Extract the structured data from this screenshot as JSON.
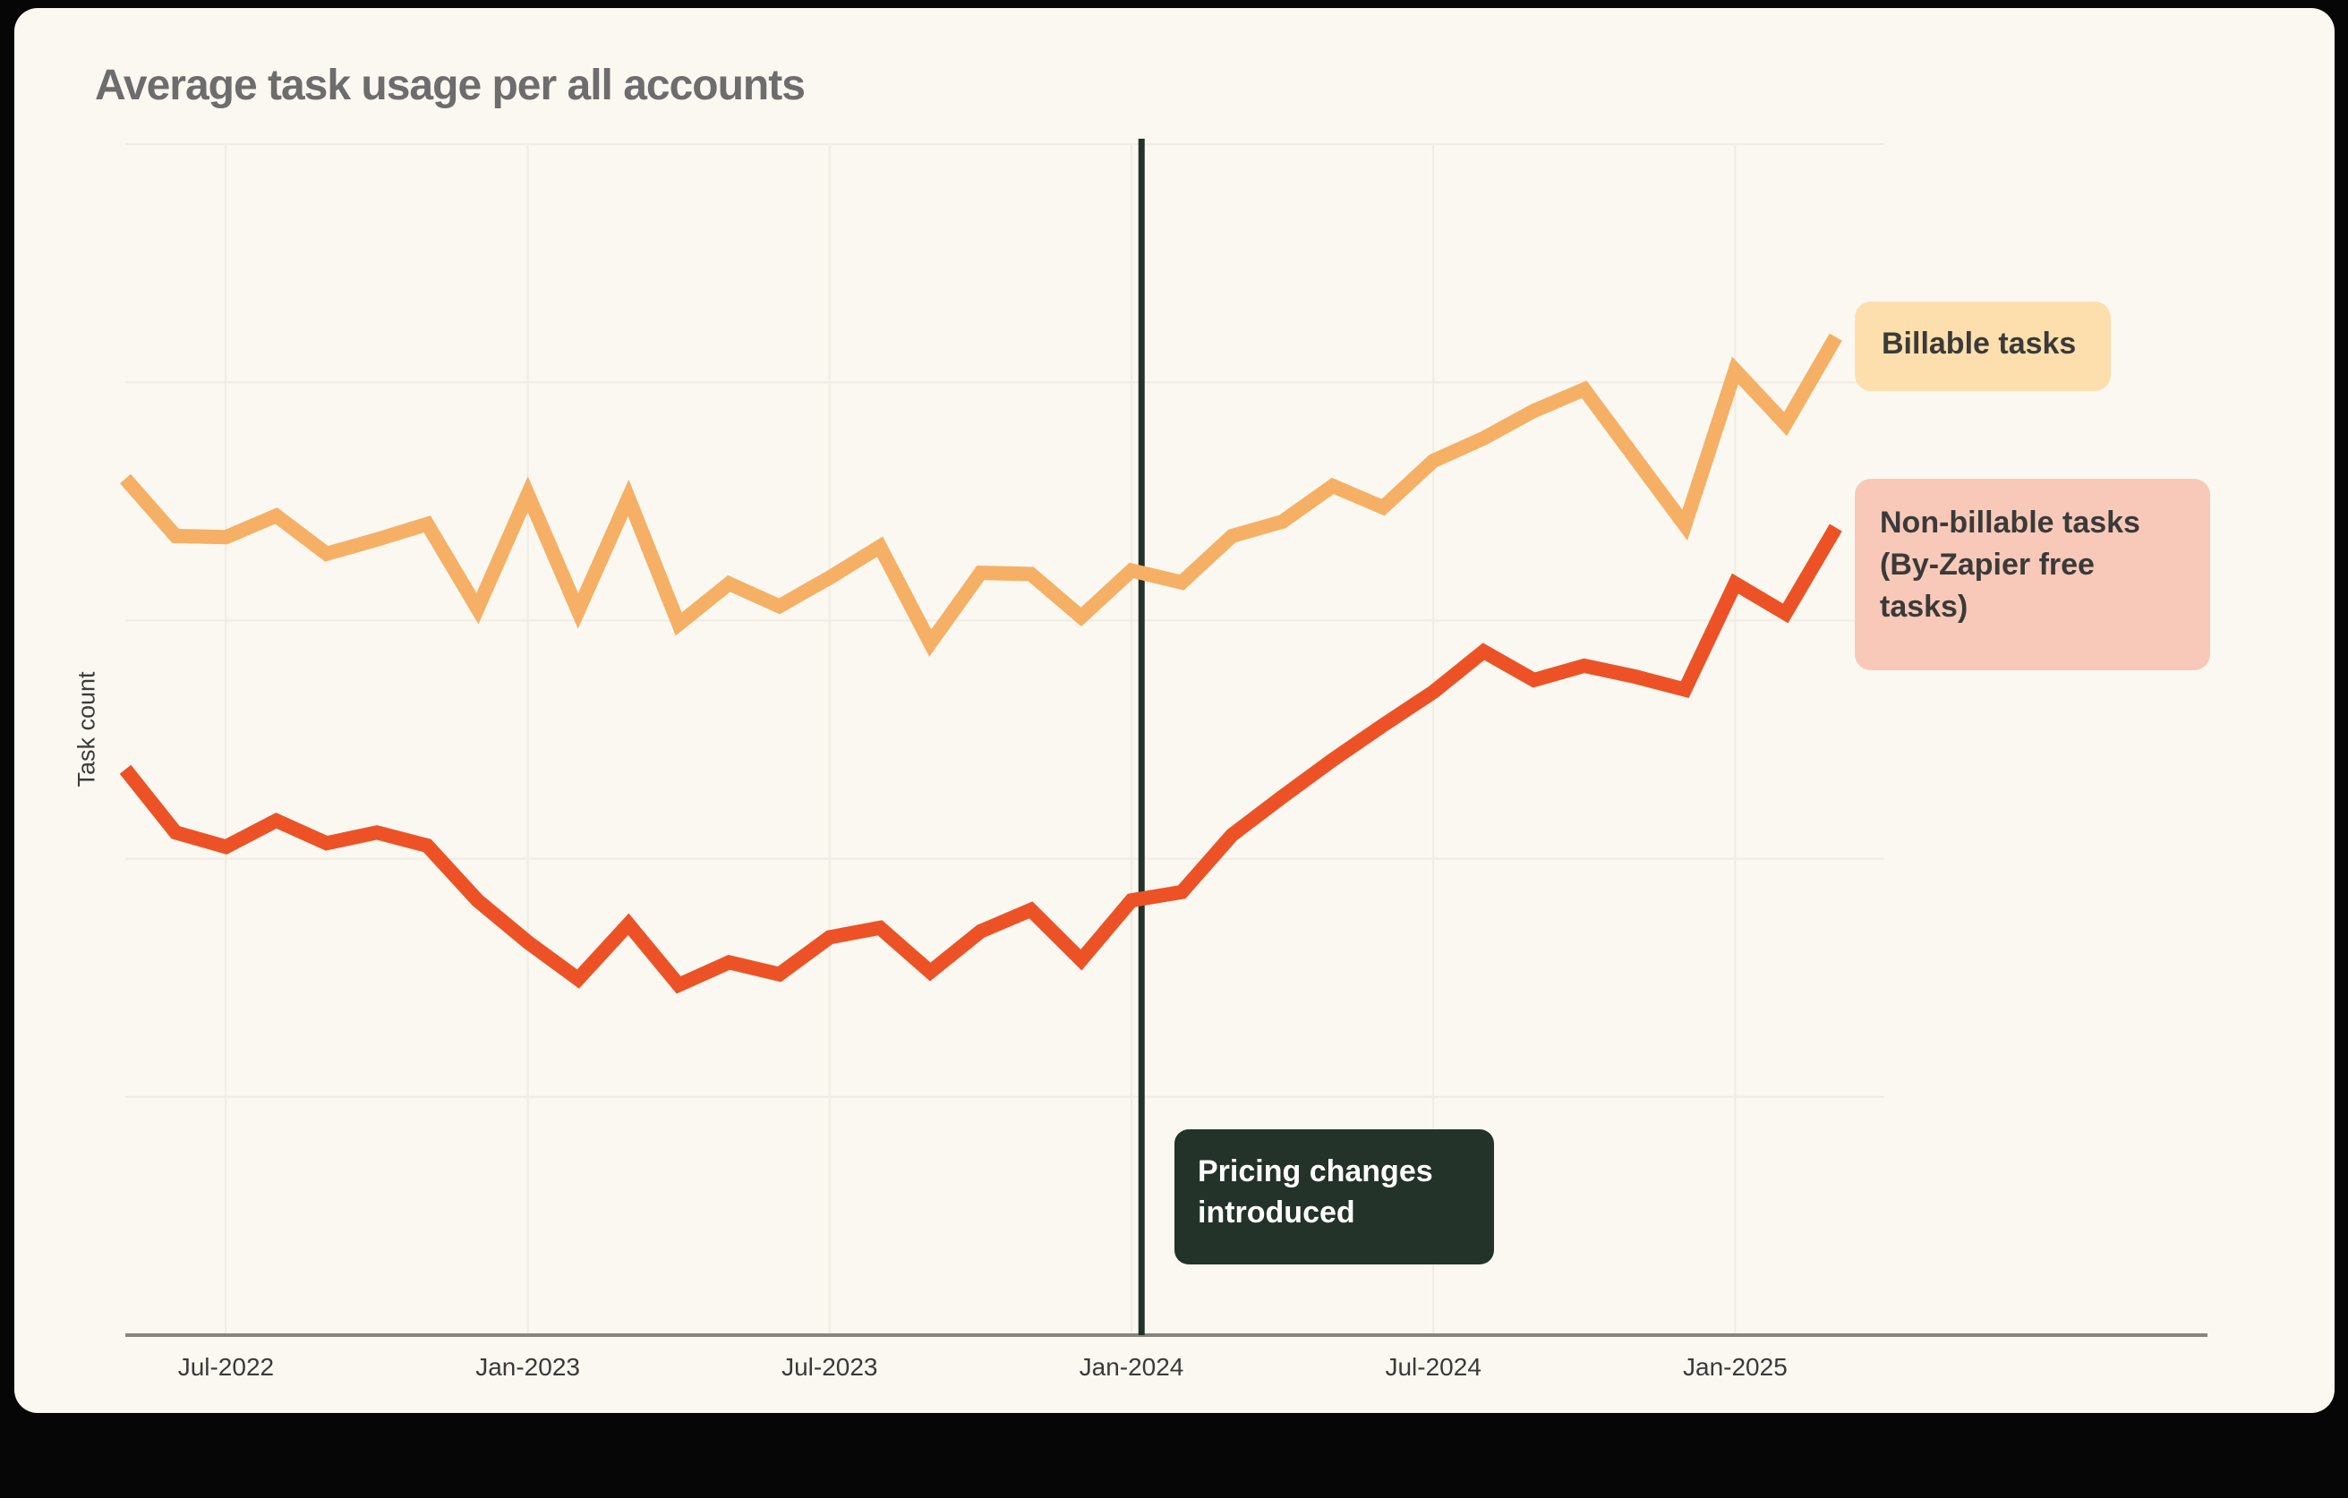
{
  "window": {
    "background": "#060606",
    "card_background": "#FBF8F1"
  },
  "header": {
    "title": "Average task usage per all accounts"
  },
  "chart_data": {
    "type": "line",
    "title": "Average task usage per all accounts",
    "xlabel": "",
    "ylabel": "Task count",
    "x": [
      "May-2022",
      "Jun-2022",
      "Jul-2022",
      "Aug-2022",
      "Sep-2022",
      "Oct-2022",
      "Nov-2022",
      "Dec-2022",
      "Jan-2023",
      "Feb-2023",
      "Mar-2023",
      "Apr-2023",
      "May-2023",
      "Jun-2023",
      "Jul-2023",
      "Aug-2023",
      "Sep-2023",
      "Oct-2023",
      "Nov-2023",
      "Dec-2023",
      "Jan-2024",
      "Feb-2024",
      "Mar-2024",
      "Apr-2024",
      "May-2024",
      "Jun-2024",
      "Jul-2024",
      "Aug-2024",
      "Sep-2024",
      "Oct-2024",
      "Nov-2024",
      "Dec-2024",
      "Jan-2025",
      "Feb-2025",
      "Mar-2025"
    ],
    "x_tick_labels": [
      "Jul-2022",
      "Jan-2023",
      "Jul-2023",
      "Jan-2024",
      "Jul-2024",
      "Jan-2025"
    ],
    "x_tick_month_indices": [
      2,
      8,
      14,
      20,
      26,
      32
    ],
    "y_axis_numeric_labels_shown": false,
    "ylim": [
      0,
      100.5
    ],
    "grid": {
      "horizontal_lines": 5,
      "vertical_lines_at_ticks": true,
      "color": "#EFECE4"
    },
    "legend_position": "right-outside-as-badges",
    "series": [
      {
        "name": "Billable tasks",
        "color": "#F5B065",
        "values": [
          71.9,
          67.1,
          67.0,
          68.8,
          65.6,
          66.8,
          68.1,
          61.0,
          70.6,
          60.8,
          70.3,
          59.7,
          63.1,
          61.2,
          63.6,
          66.2,
          58.1,
          64.0,
          63.9,
          60.3,
          64.2,
          63.2,
          67.1,
          68.3,
          71.3,
          69.5,
          73.4,
          75.3,
          77.6,
          79.4,
          73.7,
          68.0,
          81.0,
          76.5,
          83.8
        ]
      },
      {
        "name": "Non-billable tasks (By-Zapier free tasks)",
        "color": "#ED5226",
        "values": [
          47.5,
          42.2,
          41.0,
          43.2,
          41.3,
          42.2,
          41.1,
          36.5,
          33.0,
          29.9,
          34.5,
          29.4,
          31.3,
          30.3,
          33.4,
          34.2,
          30.5,
          33.9,
          35.7,
          31.5,
          36.5,
          37.2,
          42.0,
          45.2,
          48.3,
          51.2,
          54.0,
          57.4,
          55.0,
          56.2,
          55.3,
          54.2,
          63.1,
          60.6,
          67.8
        ]
      }
    ],
    "annotations": [
      {
        "type": "vline",
        "label": "Pricing changes introduced",
        "at_month": "Jan-2024",
        "x_month_index": 20.2,
        "color": "#243329"
      }
    ]
  },
  "axes": {
    "ylabel": "Task count",
    "axis_line_color": "#87857F"
  },
  "legend": {
    "billable": {
      "label": "Billable tasks",
      "bg": "#FCDFAC"
    },
    "non_billable": {
      "label": "Non-billable tasks (By-Zapier free tasks)",
      "bg": "#F8C9B8"
    }
  },
  "annotation_box": {
    "label": "Pricing changes introduced",
    "bg": "#243329",
    "text_color": "#FFFFFF"
  }
}
